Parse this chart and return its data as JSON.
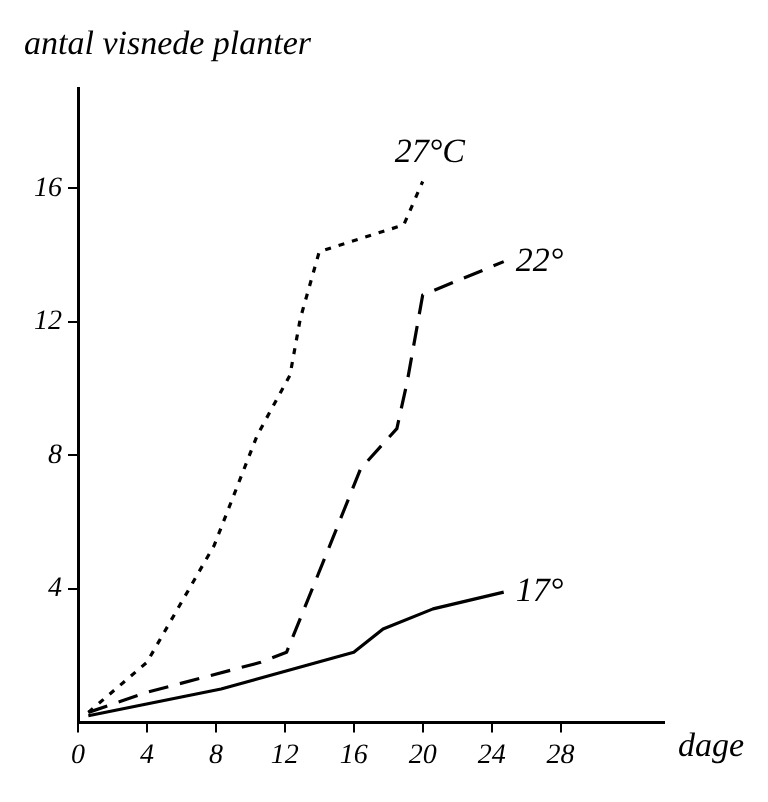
{
  "chart_data": {
    "type": "line",
    "ylabel": "antal visnede planter",
    "xlabel": "dage",
    "xlim": [
      0,
      34
    ],
    "ylim": [
      0,
      19
    ],
    "xticks": [
      0,
      4,
      8,
      12,
      16,
      20,
      24,
      28
    ],
    "yticks": [
      4,
      8,
      12,
      16
    ],
    "grid": false,
    "legend": false,
    "series": [
      {
        "name": "27°C",
        "color": "#000000",
        "line_style": "dotted",
        "x": [
          0.6,
          4,
          7.9,
          10.4,
          12.3,
          12.9,
          14,
          18.9,
          20
        ],
        "values": [
          0.3,
          1.8,
          5.3,
          8.6,
          10.4,
          12.1,
          14.1,
          14.9,
          16.2
        ]
      },
      {
        "name": "22°",
        "color": "#000000",
        "line_style": "dashed",
        "x": [
          0.6,
          4,
          10.6,
          12.1,
          14.3,
          16.4,
          18.5,
          19.1,
          20,
          24.7
        ],
        "values": [
          0.3,
          0.9,
          1.8,
          2.1,
          4.9,
          7.6,
          8.8,
          10.2,
          12.8,
          13.8
        ]
      },
      {
        "name": "17°",
        "color": "#000000",
        "line_style": "solid",
        "x": [
          0.6,
          8.3,
          16,
          17.7,
          20.6,
          24.7
        ],
        "values": [
          0.2,
          1.0,
          2.1,
          2.8,
          3.4,
          3.9
        ]
      }
    ]
  }
}
